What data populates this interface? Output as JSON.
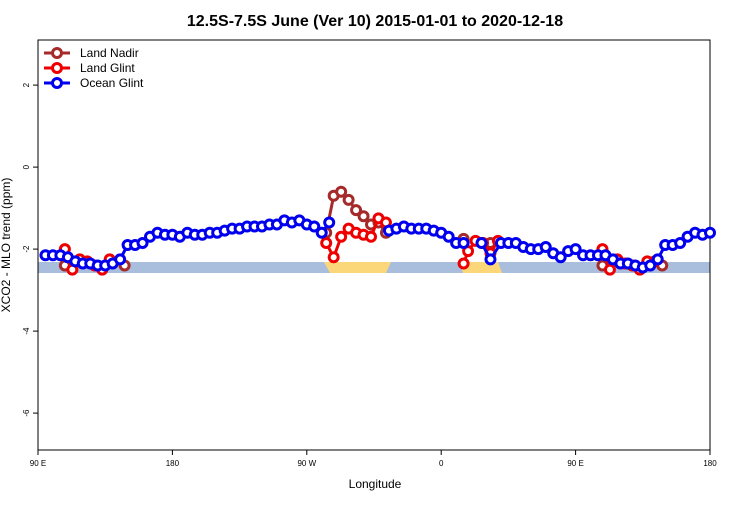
{
  "chart_data": {
    "type": "line",
    "title": "12.5S-7.5S June (Ver 10)   2015-01-01 to 2020-12-18",
    "xlabel": "Longitude",
    "ylabel": "XCO2 - MLO trend (ppm)",
    "xlim": [
      90,
      540
    ],
    "ylim": [
      -6.9,
      3.1
    ],
    "xticks": [
      {
        "value": 90,
        "label": "90 E"
      },
      180,
      {
        "value": 270,
        "label": "90 W"
      },
      {
        "value": 360,
        "label": "0"
      },
      {
        "value": 450,
        "label": "90 E"
      },
      {
        "value": 540,
        "label": "180"
      }
    ],
    "yticks": [
      2,
      0,
      -2,
      -4,
      -6
    ],
    "legend": "top-left",
    "series": [
      {
        "name": "Land Nadir",
        "color": "#a52a2a",
        "x": [
          108,
          null,
          148,
          null,
          283,
          288,
          293,
          298,
          303,
          308,
          313,
          318,
          323,
          null,
          375,
          null,
          393,
          null,
          468,
          null,
          508
        ],
        "values": [
          -2.4,
          null,
          -2.4,
          null,
          -1.6,
          -0.7,
          -0.6,
          -0.8,
          -1.05,
          -1.2,
          -1.4,
          -1.35,
          -1.6,
          null,
          -1.75,
          null,
          -1.85,
          null,
          -2.4,
          null,
          -2.4
        ]
      },
      {
        "name": "Land Glint",
        "color": "#ee0000",
        "x": [
          108,
          113,
          118,
          123,
          128,
          133,
          138,
          null,
          283,
          288,
          293,
          298,
          303,
          308,
          313,
          318,
          323,
          null,
          375,
          378,
          383,
          388,
          393,
          398,
          null,
          468,
          473,
          478,
          483,
          488,
          493,
          498,
          503
        ],
        "values": [
          -2.0,
          -2.5,
          -2.25,
          -2.3,
          -2.4,
          -2.5,
          -2.25,
          null,
          -1.85,
          -2.2,
          -1.7,
          -1.5,
          -1.6,
          -1.65,
          -1.7,
          -1.25,
          -1.35,
          null,
          -2.35,
          -2.05,
          -1.8,
          -1.85,
          -2.1,
          -1.8,
          null,
          -2.0,
          -2.5,
          -2.25,
          -2.35,
          -2.4,
          -2.5,
          -2.3,
          -2.3
        ]
      },
      {
        "name": "Ocean Glint",
        "color": "#0000ee",
        "x": [
          95,
          100,
          105,
          110,
          115,
          120,
          125,
          130,
          135,
          140,
          145,
          150,
          155,
          160,
          165,
          170,
          175,
          180,
          185,
          190,
          195,
          200,
          205,
          210,
          215,
          220,
          225,
          230,
          235,
          240,
          245,
          250,
          255,
          260,
          265,
          270,
          275,
          280,
          285,
          null,
          325,
          330,
          335,
          340,
          345,
          350,
          355,
          360,
          365,
          370,
          375,
          null,
          387,
          393,
          400,
          405,
          410,
          415,
          420,
          425,
          430,
          435,
          440,
          445,
          450,
          455,
          460,
          465,
          470,
          475,
          480,
          485,
          490,
          495,
          500,
          505,
          510,
          515,
          520,
          525,
          530,
          535,
          540
        ],
        "values": [
          -2.15,
          -2.15,
          -2.15,
          -2.2,
          -2.3,
          -2.35,
          -2.35,
          -2.4,
          -2.4,
          -2.35,
          -2.25,
          -1.9,
          -1.9,
          -1.85,
          -1.7,
          -1.6,
          -1.65,
          -1.65,
          -1.7,
          -1.6,
          -1.65,
          -1.65,
          -1.6,
          -1.6,
          -1.55,
          -1.5,
          -1.5,
          -1.45,
          -1.45,
          -1.45,
          -1.4,
          -1.4,
          -1.3,
          -1.35,
          -1.3,
          -1.4,
          -1.45,
          -1.6,
          -1.35,
          null,
          -1.55,
          -1.5,
          -1.45,
          -1.5,
          -1.5,
          -1.5,
          -1.55,
          -1.6,
          -1.7,
          -1.85,
          -1.85,
          null,
          -1.85,
          -2.25,
          -1.85,
          -1.85,
          -1.85,
          -1.95,
          -2.0,
          -2.0,
          -1.95,
          -2.1,
          -2.2,
          -2.05,
          -2.0,
          -2.15,
          -2.15,
          -2.15,
          -2.15,
          -2.25,
          -2.35,
          -2.35,
          -2.4,
          -2.45,
          -2.4,
          -2.25,
          -1.9,
          -1.9,
          -1.85,
          -1.7,
          -1.6,
          -1.65,
          -1.6
        ]
      }
    ]
  }
}
